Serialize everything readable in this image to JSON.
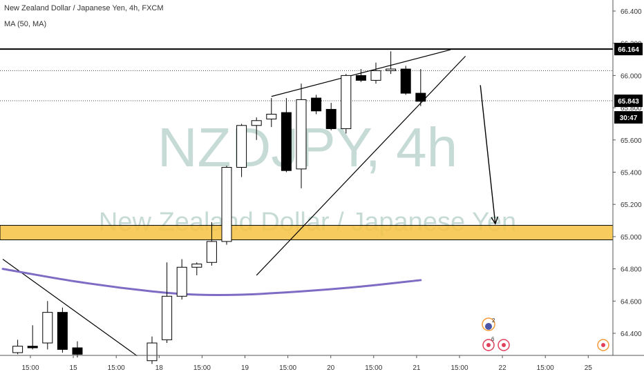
{
  "header": {
    "title": "New Zealand Dollar / Japanese Yen, 4h, FXCM",
    "indicator": "MA (50, MA)"
  },
  "watermark": {
    "symbol": "NZDJPY, 4h",
    "name": "New Zealand Dollar / Japanese Yen"
  },
  "colors": {
    "candle_up_fill": "#ffffff",
    "candle_down_fill": "#000000",
    "candle_border": "#000000",
    "ma_line": "#7e6cc4",
    "support_zone": "#f6c242",
    "watermark": "#b4cfc8",
    "grid_text": "#333333",
    "event_red": "#e0405a",
    "event_orange": "#f29a38",
    "event_blue": "#4a55a8"
  },
  "chart_data": {
    "type": "candlestick",
    "price_axis": {
      "ticks": [
        "66.400",
        "66.200",
        "66.000",
        "65.800",
        "65.600",
        "65.400",
        "65.200",
        "65.000",
        "64.800",
        "64.600",
        "64.400"
      ],
      "ylim": [
        64.29,
        66.5
      ]
    },
    "time_axis": {
      "ticks": [
        "15:00",
        "15",
        "15:00",
        "18",
        "15:00",
        "19",
        "15:00",
        "20",
        "15:00",
        "21",
        "15:00",
        "22",
        "15:00",
        "25"
      ]
    },
    "price_labels": {
      "resistance": "66.164",
      "last": "65.843",
      "countdown": "30:47"
    },
    "candles": [
      {
        "t": 1,
        "o": 64.28,
        "h": 64.36,
        "l": 64.27,
        "c": 64.32
      },
      {
        "t": 2,
        "o": 64.32,
        "h": 64.45,
        "l": 64.3,
        "c": 64.31
      },
      {
        "t": 3,
        "o": 64.34,
        "h": 64.6,
        "l": 64.3,
        "c": 64.53
      },
      {
        "t": 4,
        "o": 64.53,
        "h": 64.56,
        "l": 64.28,
        "c": 64.3
      },
      {
        "t": 5,
        "o": 64.31,
        "h": 64.35,
        "l": 64.25,
        "c": 64.27
      },
      {
        "t": 10,
        "o": 64.23,
        "h": 64.38,
        "l": 64.21,
        "c": 64.34
      },
      {
        "t": 11,
        "o": 64.36,
        "h": 64.84,
        "l": 64.34,
        "c": 64.63
      },
      {
        "t": 12,
        "o": 64.63,
        "h": 64.86,
        "l": 64.61,
        "c": 64.81
      },
      {
        "t": 13,
        "o": 64.81,
        "h": 64.84,
        "l": 64.76,
        "c": 64.83
      },
      {
        "t": 14,
        "o": 64.84,
        "h": 65.09,
        "l": 64.82,
        "c": 64.97
      },
      {
        "t": 15,
        "o": 64.97,
        "h": 65.44,
        "l": 64.95,
        "c": 65.43
      },
      {
        "t": 16,
        "o": 65.43,
        "h": 65.7,
        "l": 65.37,
        "c": 65.69
      },
      {
        "t": 17,
        "o": 65.69,
        "h": 65.74,
        "l": 65.6,
        "c": 65.72
      },
      {
        "t": 18,
        "o": 65.73,
        "h": 65.86,
        "l": 65.68,
        "c": 65.76
      },
      {
        "t": 19,
        "o": 65.77,
        "h": 65.86,
        "l": 65.4,
        "c": 65.41
      },
      {
        "t": 20,
        "o": 65.42,
        "h": 65.95,
        "l": 65.3,
        "c": 65.85
      },
      {
        "t": 21,
        "o": 65.86,
        "h": 65.88,
        "l": 65.76,
        "c": 65.78
      },
      {
        "t": 22,
        "o": 65.79,
        "h": 65.83,
        "l": 65.66,
        "c": 65.67
      },
      {
        "t": 23,
        "o": 65.67,
        "h": 66.01,
        "l": 65.64,
        "c": 66.0
      },
      {
        "t": 24,
        "o": 66.0,
        "h": 66.04,
        "l": 65.96,
        "c": 65.97
      },
      {
        "t": 25,
        "o": 65.97,
        "h": 66.08,
        "l": 65.95,
        "c": 66.03
      },
      {
        "t": 26,
        "o": 66.03,
        "h": 66.15,
        "l": 66.01,
        "c": 66.04
      },
      {
        "t": 27,
        "o": 66.04,
        "h": 66.06,
        "l": 65.88,
        "c": 65.89
      },
      {
        "t": 28,
        "o": 65.89,
        "h": 66.04,
        "l": 65.81,
        "c": 65.84
      }
    ],
    "ma_series": {
      "x": [
        0,
        5,
        10,
        13,
        16,
        20,
        24,
        28
      ],
      "y": [
        64.8,
        64.72,
        64.66,
        64.64,
        64.64,
        64.66,
        64.69,
        64.73
      ]
    },
    "support_zone": [
      64.98,
      65.07
    ],
    "horizontal_lines": {
      "resistance": 66.164,
      "dotted_upper": 66.03,
      "last_price": 65.843
    },
    "trendlines": [
      {
        "x1": 18.0,
        "y1": 65.87,
        "x2": 30.0,
        "y2": 66.16
      },
      {
        "x1": 17.0,
        "y1": 64.76,
        "x2": 31.0,
        "y2": 66.12
      },
      {
        "x1": 0.0,
        "y1": 64.86,
        "x2": 9.0,
        "y2": 64.26
      }
    ],
    "projection_arrow": {
      "x1": 32.0,
      "y1": 65.94,
      "x2": 33.0,
      "y2": 65.08
    }
  }
}
